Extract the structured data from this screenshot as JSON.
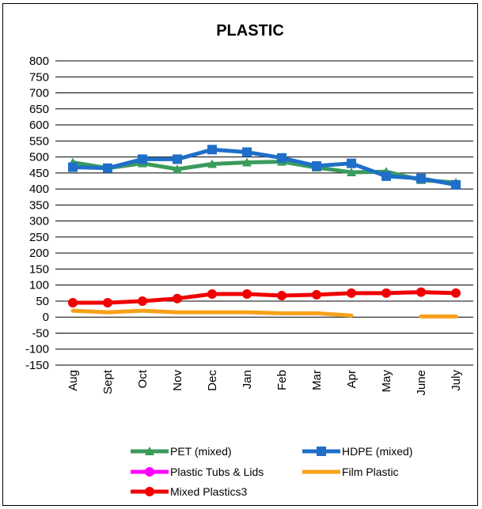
{
  "chart_data": {
    "type": "line",
    "title": "PLASTIC",
    "xlabel": "",
    "ylabel": "",
    "ylim": [
      -150,
      800
    ],
    "ytick_step": 50,
    "grid": true,
    "legend_position": "bottom",
    "categories": [
      "Aug",
      "Sept",
      "Oct",
      "Nov",
      "Dec",
      "Jan",
      "Feb",
      "Mar",
      "Apr",
      "May",
      "June",
      "July"
    ],
    "series": [
      {
        "name": "PET (mixed)",
        "color": "#3a9b5c",
        "marker": "triangle",
        "values": [
          483,
          465,
          480,
          462,
          478,
          483,
          485,
          467,
          452,
          454,
          428,
          420
        ]
      },
      {
        "name": "HDPE (mixed)",
        "color": "#1f6fc9",
        "marker": "square",
        "values": [
          468,
          465,
          493,
          493,
          523,
          515,
          497,
          472,
          480,
          440,
          433,
          413
        ]
      },
      {
        "name": "Plastic Tubs & Lids",
        "color": "#ff00ff",
        "marker": "circle",
        "values": [
          null,
          null,
          null,
          null,
          null,
          null,
          null,
          null,
          null,
          null,
          null,
          null
        ]
      },
      {
        "name": "Film Plastic",
        "color": "#f7a11a",
        "marker": "none",
        "values": [
          20,
          15,
          20,
          15,
          15,
          15,
          12,
          12,
          5,
          null,
          2,
          2
        ]
      },
      {
        "name": "Mixed Plastics3",
        "color": "#f00000",
        "marker": "circle",
        "values": [
          45,
          45,
          50,
          58,
          72,
          72,
          67,
          70,
          75,
          75,
          78,
          75
        ]
      }
    ]
  }
}
